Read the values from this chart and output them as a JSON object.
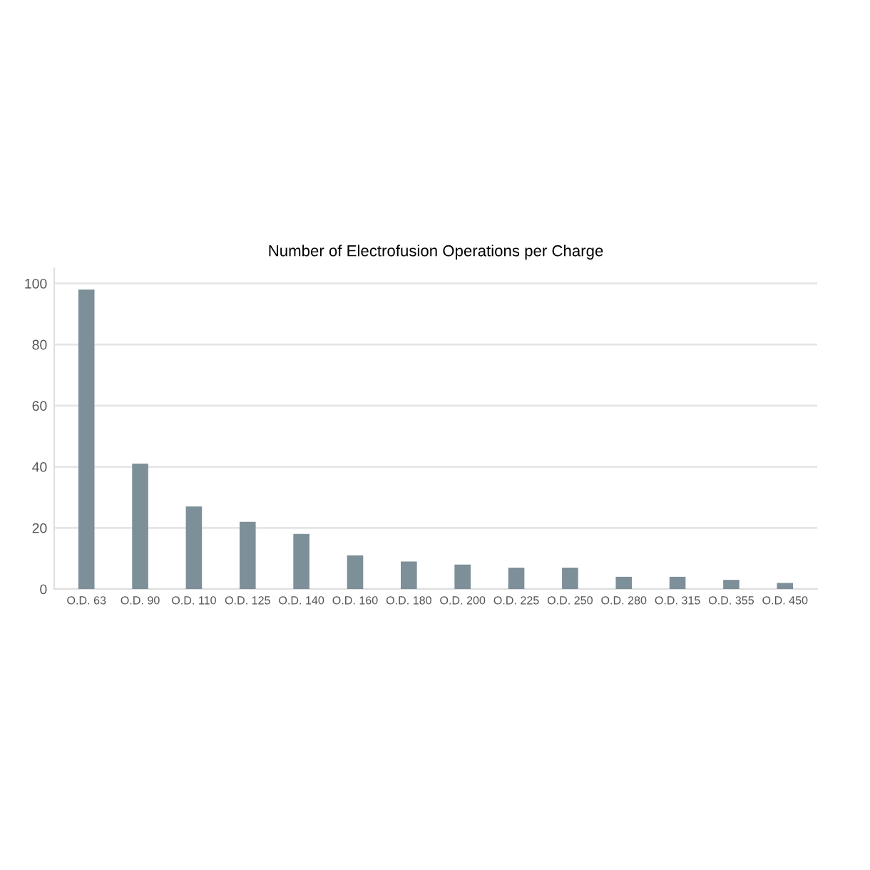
{
  "chart_data": {
    "type": "bar",
    "title": "Number of Electrofusion Operations per Charge",
    "categories": [
      "O.D. 63",
      "O.D. 90",
      "O.D. 110",
      "O.D. 125",
      "O.D. 140",
      "O.D. 160",
      "O.D. 180",
      "O.D. 200",
      "O.D. 225",
      "O.D. 250",
      "O.D. 280",
      "O.D. 315",
      "O.D. 355",
      "O.D. 450"
    ],
    "values": [
      98,
      41,
      27,
      22,
      18,
      11,
      9,
      8,
      7,
      7,
      4,
      4,
      3,
      2
    ],
    "color": "#7d8f99",
    "ylim": [
      0,
      105
    ],
    "yticks": [
      0,
      20,
      40,
      60,
      80,
      100
    ],
    "grid": "y"
  }
}
